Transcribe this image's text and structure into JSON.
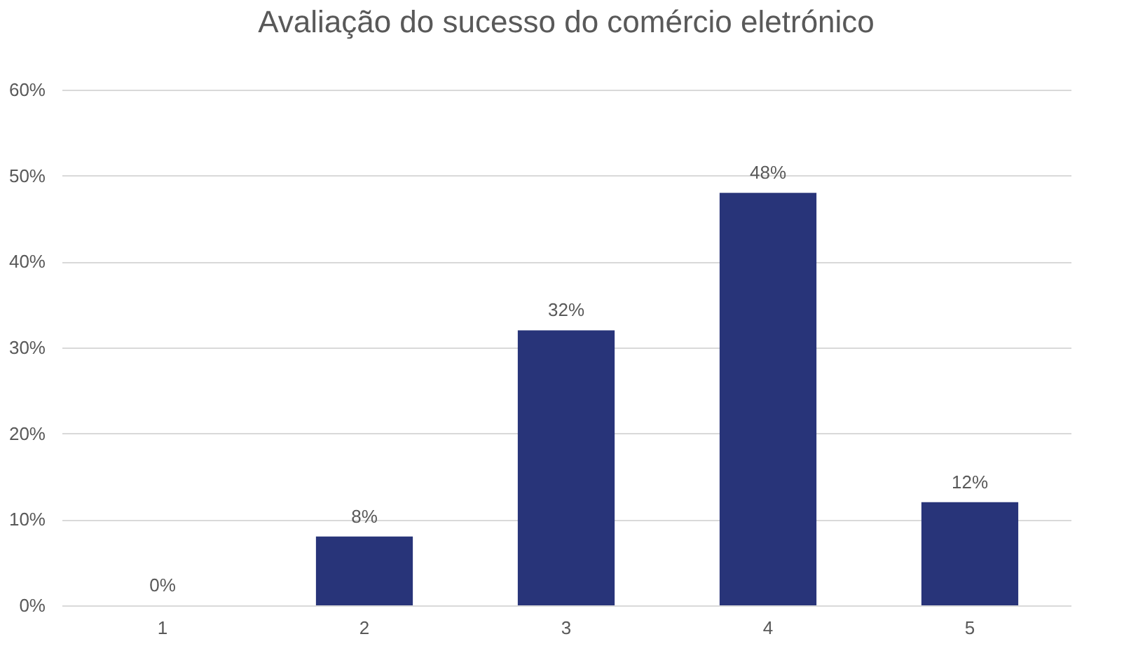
{
  "chart_data": {
    "type": "bar",
    "title": "Avaliação do sucesso do comércio eletrónico",
    "categories": [
      "1",
      "2",
      "3",
      "4",
      "5"
    ],
    "values": [
      0,
      8,
      32,
      48,
      12
    ],
    "value_labels": [
      "0%",
      "8%",
      "32%",
      "48%",
      "12%"
    ],
    "color": "#283479",
    "ylim": [
      0,
      60
    ],
    "yticks": [
      {
        "value": 0,
        "label": "0%"
      },
      {
        "value": 10,
        "label": "10%"
      },
      {
        "value": 20,
        "label": "20%"
      },
      {
        "value": 30,
        "label": "30%"
      },
      {
        "value": 40,
        "label": "40%"
      },
      {
        "value": 50,
        "label": "50%"
      },
      {
        "value": 60,
        "label": "60%"
      }
    ],
    "grid": "y"
  }
}
